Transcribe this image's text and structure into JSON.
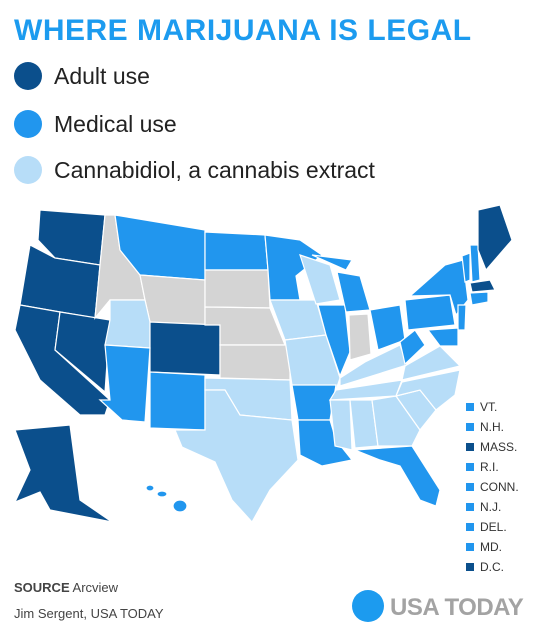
{
  "title": "WHERE MARIJUANA IS LEGAL",
  "legend": [
    "Adult use",
    "Medical use",
    "Cannabidiol, a cannabis extract"
  ],
  "small_states": [
    "VT.",
    "N.H.",
    "MASS.",
    "R.I.",
    "CONN.",
    "N.J.",
    "DEL.",
    "MD.",
    "D.C."
  ],
  "source": {
    "label": "SOURCE",
    "text": "Arcview"
  },
  "credit": "Jim Sergent, USA TODAY",
  "logo": "USA TODAY"
}
